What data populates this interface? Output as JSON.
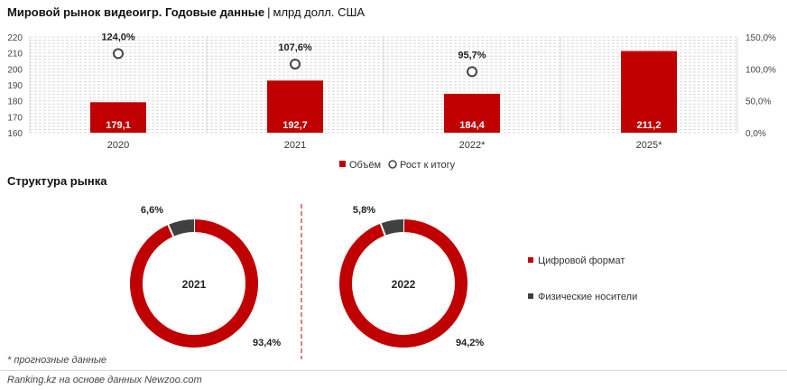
{
  "title": {
    "bold": "Мировой рынок видеоигр. Годовые данные",
    "separator": "|",
    "unit": "млрд долл. США"
  },
  "chart_data": [
    {
      "type": "bar",
      "categories": [
        "2020",
        "2021",
        "2022*",
        "2025*"
      ],
      "series": [
        {
          "name": "Объём",
          "values": [
            179.1,
            192.7,
            184.4,
            211.2
          ],
          "labels": [
            "179,1",
            "192,7",
            "184,4",
            "211,2"
          ],
          "color": "#c00000"
        },
        {
          "name": "Рост к итогу",
          "values": [
            124.0,
            107.6,
            95.7,
            null
          ],
          "labels": [
            "124,0%",
            "107,6%",
            "95,7%",
            ""
          ],
          "color": "#ffffff"
        }
      ],
      "ylim": [
        160,
        220
      ],
      "y_ticks": [
        "160",
        "170",
        "180",
        "190",
        "200",
        "210",
        "220"
      ],
      "y2lim": [
        0,
        150
      ],
      "y2_ticks": [
        "0,0%",
        "50,0%",
        "100,0%",
        "150,0%"
      ],
      "grid": true,
      "legend": "bottom"
    },
    {
      "type": "pie",
      "center_label": "2021",
      "slices": [
        {
          "name": "Цифровой формат",
          "value": 93.4,
          "label": "93,4%",
          "color": "#c00000"
        },
        {
          "name": "Физические носители",
          "value": 6.6,
          "label": "6,6%",
          "color": "#404040"
        }
      ]
    },
    {
      "type": "pie",
      "center_label": "2022",
      "slices": [
        {
          "name": "Цифровой формат",
          "value": 94.2,
          "label": "94,2%",
          "color": "#c00000"
        },
        {
          "name": "Физические носители",
          "value": 5.8,
          "label": "5,8%",
          "color": "#404040"
        }
      ]
    }
  ],
  "structure_title": "Структура рынка",
  "footnote": "* прогнозные данные",
  "source": "Ranking.kz на основе данных Newzoo.com"
}
